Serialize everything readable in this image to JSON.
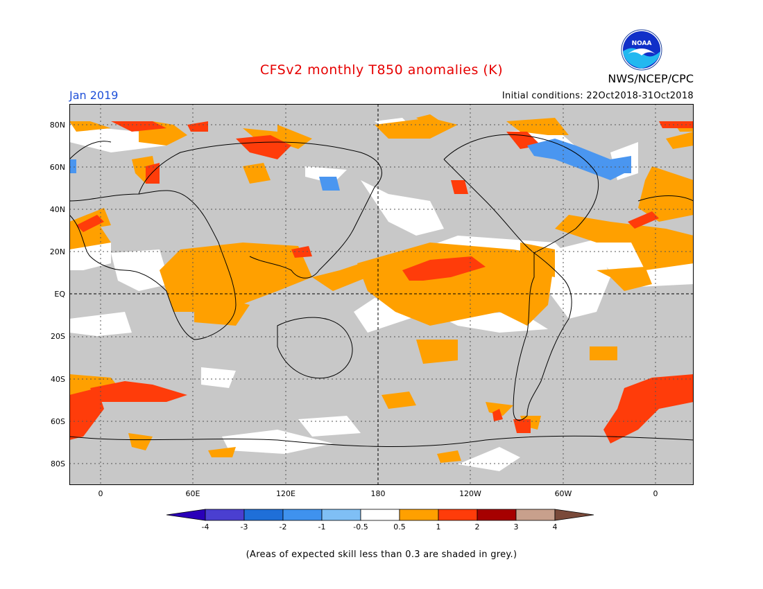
{
  "header": {
    "title": "CFSv2 monthly T850 anomalies (K)",
    "month": "Jan 2019",
    "initial_conditions": "Initial conditions: 22Oct2018-31Oct2018",
    "org": "NWS/NCEP/CPC",
    "logo_text": "NOAA"
  },
  "map": {
    "lat_labels": [
      "80N",
      "60N",
      "40N",
      "20N",
      "EQ",
      "20S",
      "40S",
      "60S",
      "80S"
    ],
    "lon_labels": [
      "0",
      "60E",
      "120E",
      "180",
      "120W",
      "60W",
      "0"
    ]
  },
  "colorbar": {
    "labels": [
      "-4",
      "-3",
      "-2",
      "-1",
      "-0.5",
      "0.5",
      "1",
      "2",
      "3",
      "4"
    ],
    "colors": [
      "#2a00b8",
      "#4a3fd0",
      "#1f6fd8",
      "#3f92ee",
      "#7fbff5",
      "#ffffff",
      "#ffa000",
      "#ff3c0a",
      "#a60000",
      "#c8a08c",
      "#7a4a3a"
    ]
  },
  "colors": {
    "grey_skill": "#c8c8c8",
    "orange": "#ffa000",
    "red": "#ff3c0a",
    "blue": "#4a96f0",
    "white": "#ffffff"
  },
  "footnote": "(Areas of expected skill less than 0.3 are shaded in grey.)"
}
